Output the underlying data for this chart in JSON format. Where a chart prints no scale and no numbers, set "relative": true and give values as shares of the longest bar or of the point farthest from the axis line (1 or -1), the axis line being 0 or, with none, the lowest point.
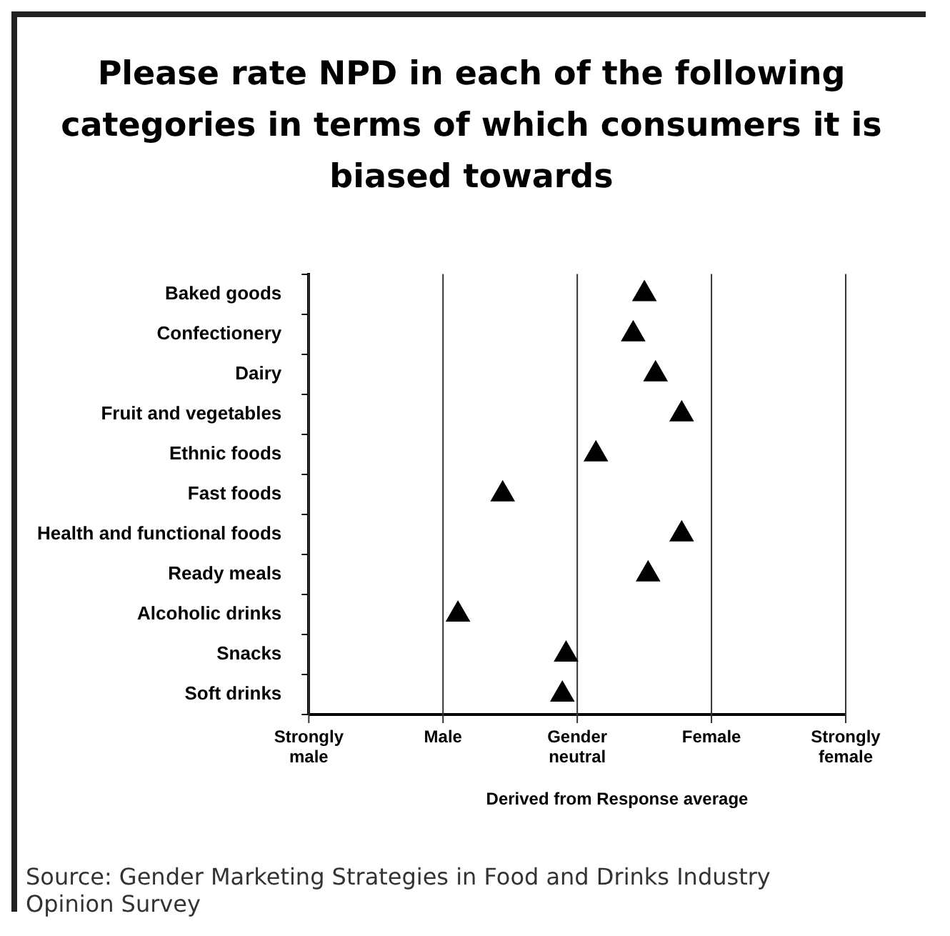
{
  "chart_data": {
    "type": "scatter",
    "orientation": "horizontal",
    "title": "Please rate NPD in each of the following categories in terms of which consumers it is biased towards",
    "xlabel": "Derived from Response average",
    "categories": [
      "Baked goods",
      "Confectionery",
      "Dairy",
      "Fruit and vegetables",
      "Ethnic foods",
      "Fast foods",
      "Health and functional foods",
      "Ready meals",
      "Alcoholic drinks",
      "Snacks",
      "Soft drinks"
    ],
    "values": [
      0.9,
      0.87,
      0.93,
      1.0,
      0.77,
      0.52,
      1.0,
      0.91,
      0.4,
      0.69,
      0.68
    ],
    "relative": true,
    "color": "#000000",
    "marker": "triangle",
    "ref_lines": [
      {
        "axis": "x",
        "value": 0,
        "label": "Strongly male"
      },
      {
        "axis": "x",
        "value": 0.36,
        "label": "Male"
      },
      {
        "axis": "x",
        "value": 0.72,
        "label": "Gender neutral"
      },
      {
        "axis": "x",
        "value": 1.08,
        "label": "Female"
      },
      {
        "axis": "x",
        "value": 1.44,
        "label": "Strongly female"
      }
    ],
    "annotations": [
      "Source: Gender Marketing Strategies in Food and Drinks Industry Opinion Survey"
    ]
  }
}
